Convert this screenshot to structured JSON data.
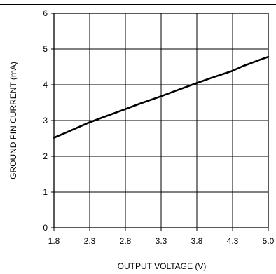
{
  "chart_data": {
    "type": "line",
    "title": "",
    "xlabel": "OUTPUT VOLTAGE (V)",
    "ylabel": "GROUND PIN CURRENT (mA)",
    "xlim": [
      1.8,
      5.0
    ],
    "ylim": [
      0,
      6
    ],
    "x_ticks": [
      1.8,
      2.3,
      2.8,
      3.3,
      3.8,
      4.3,
      5.0
    ],
    "y_ticks": [
      0,
      1,
      2,
      3,
      4,
      5,
      6
    ],
    "x_tick_labels": [
      "1.8",
      "2.3",
      "2.8",
      "3.3",
      "3.8",
      "4.3",
      "5.0"
    ],
    "y_tick_labels": [
      "0",
      "1",
      "2",
      "3",
      "4",
      "5",
      "6"
    ],
    "grid": true,
    "series": [
      {
        "x": [
          1.8,
          2.0,
          2.3,
          2.5,
          2.8,
          3.0,
          3.3,
          3.5,
          3.8,
          4.0,
          4.3,
          4.5,
          4.8,
          5.0
        ],
        "y": [
          2.52,
          2.69,
          2.95,
          3.1,
          3.32,
          3.47,
          3.68,
          3.83,
          4.05,
          4.19,
          4.39,
          4.52,
          4.68,
          4.78
        ]
      }
    ]
  }
}
